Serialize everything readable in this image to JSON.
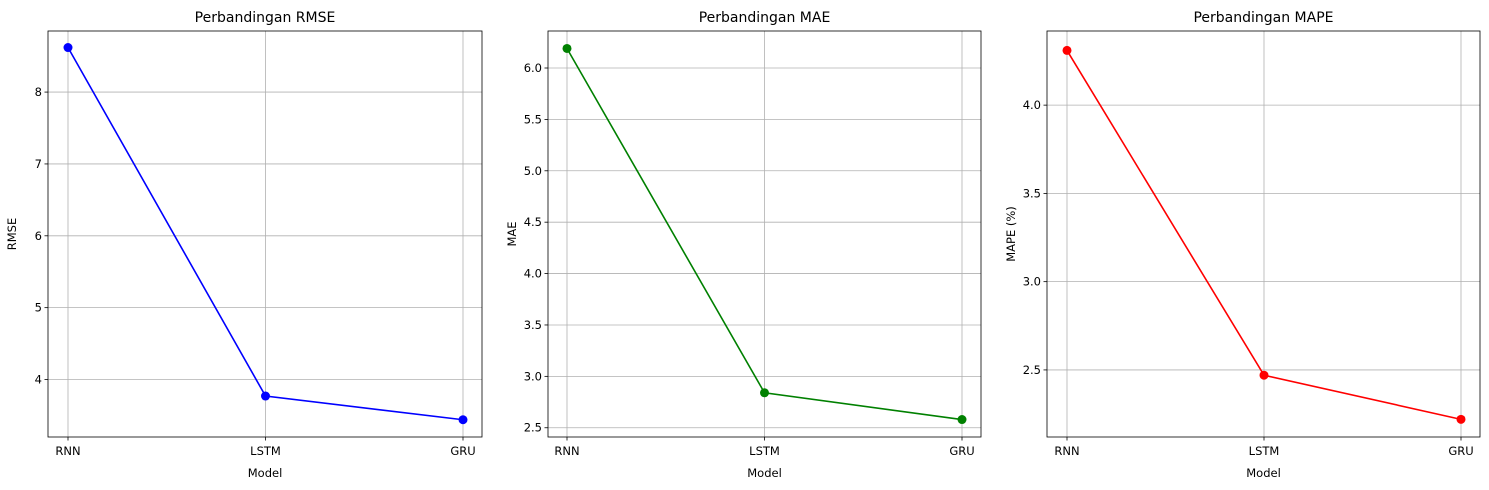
{
  "chart_data": [
    {
      "type": "line",
      "title": "Perbandingan RMSE",
      "xlabel": "Model",
      "ylabel": "RMSE",
      "categories": [
        "RNN",
        "LSTM",
        "GRU"
      ],
      "values": [
        8.62,
        3.77,
        3.44
      ],
      "ylim": [
        3.2,
        8.85
      ],
      "yticks": [
        4,
        5,
        6,
        7,
        8
      ],
      "ytick_labels": [
        "4",
        "5",
        "6",
        "7",
        "8"
      ],
      "color": "#0000ff",
      "grid": true,
      "marker": "circle"
    },
    {
      "type": "line",
      "title": "Perbandingan MAE",
      "xlabel": "Model",
      "ylabel": "MAE",
      "categories": [
        "RNN",
        "LSTM",
        "GRU"
      ],
      "values": [
        6.19,
        2.84,
        2.58
      ],
      "ylim": [
        2.41,
        6.36
      ],
      "yticks": [
        2.5,
        3.0,
        3.5,
        4.0,
        4.5,
        5.0,
        5.5,
        6.0
      ],
      "ytick_labels": [
        "2.5",
        "3.0",
        "3.5",
        "4.0",
        "4.5",
        "5.0",
        "5.5",
        "6.0"
      ],
      "color": "#008000",
      "grid": true,
      "marker": "circle"
    },
    {
      "type": "line",
      "title": "Perbandingan MAPE",
      "xlabel": "Model",
      "ylabel": "MAPE (%)",
      "categories": [
        "RNN",
        "LSTM",
        "GRU"
      ],
      "values": [
        4.31,
        2.47,
        2.22
      ],
      "ylim": [
        2.12,
        4.42
      ],
      "yticks": [
        2.5,
        3.0,
        3.5,
        4.0
      ],
      "ytick_labels": [
        "2.5",
        "3.0",
        "3.5",
        "4.0"
      ],
      "color": "#ff0000",
      "grid": true,
      "marker": "circle"
    }
  ]
}
